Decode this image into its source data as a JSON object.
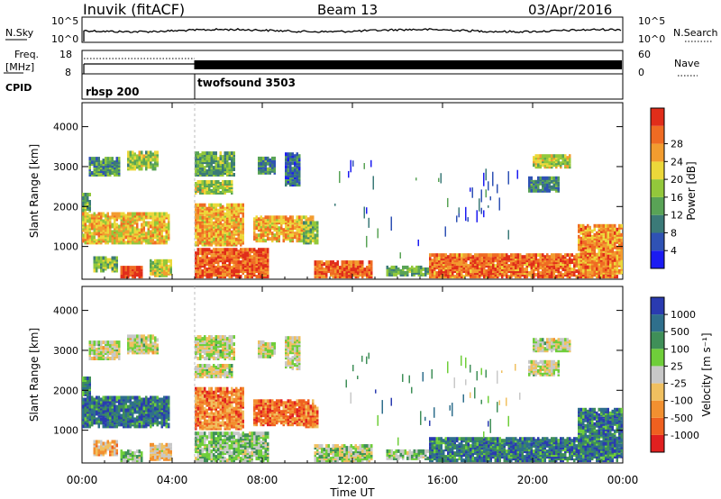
{
  "header": {
    "title": "Inuvik (fitACF)",
    "beam": "Beam 13",
    "date": "03/Apr/2016"
  },
  "top_panels": {
    "nsky_label": "N.Sky",
    "nsky_ticks": [
      "10^5",
      "10^0"
    ],
    "nsearch_label": "N.Search",
    "nsearch_ticks": [
      "10^5",
      "10^0"
    ],
    "freq_label": "Freq.",
    "freq_unit": "[MHz]",
    "freq_ticks": [
      "18",
      "8"
    ],
    "nave_label": "Nave",
    "nave_ticks": [
      "60",
      "0"
    ],
    "cpid_label": "CPID",
    "cpid_segments": [
      {
        "label": "rbsp 200",
        "start_hour": 0
      },
      {
        "label": "twofsound 3503",
        "start_hour": 5
      }
    ]
  },
  "chart_data": [
    {
      "type": "heatmap",
      "name": "power",
      "ylabel": "Slant Range [km]",
      "y_ticks": [
        "1000",
        "2000",
        "3000",
        "4000"
      ],
      "y_tick_values": [
        1000,
        2000,
        3000,
        4000
      ],
      "ylim": [
        180,
        4600
      ],
      "xlim_hours": [
        0,
        24
      ],
      "colorbar": {
        "label": "Power [dB]",
        "ticks": [
          "4",
          "8",
          "12",
          "16",
          "20",
          "24",
          "28"
        ],
        "colors": [
          "#1b1bf2",
          "#2f52b4",
          "#3b7a78",
          "#59a356",
          "#93c83b",
          "#ecd83a",
          "#f29c2f",
          "#ef6b23",
          "#e02d1a"
        ]
      },
      "regions": [
        {
          "t0": 0.0,
          "t1": 0.35,
          "r0": 1850,
          "r1": 2300,
          "level": 0.4
        },
        {
          "t0": 0.0,
          "t1": 3.9,
          "r0": 1050,
          "r1": 1800,
          "level": 0.65
        },
        {
          "t0": 0.3,
          "t1": 1.7,
          "r0": 2750,
          "r1": 3200,
          "level": 0.35
        },
        {
          "t0": 2.0,
          "t1": 3.4,
          "r0": 2900,
          "r1": 3350,
          "level": 0.5
        },
        {
          "t0": 0.5,
          "t1": 1.6,
          "r0": 350,
          "r1": 700,
          "level": 0.45
        },
        {
          "t0": 1.7,
          "t1": 2.7,
          "r0": 200,
          "r1": 450,
          "level": 0.95
        },
        {
          "t0": 3.0,
          "t1": 4.0,
          "r0": 230,
          "r1": 600,
          "level": 0.55
        },
        {
          "t0": 5.0,
          "t1": 7.1,
          "r0": 1000,
          "r1": 2000,
          "level": 0.7
        },
        {
          "t0": 5.0,
          "t1": 6.6,
          "r0": 2300,
          "r1": 2600,
          "level": 0.5
        },
        {
          "t0": 5.0,
          "t1": 6.7,
          "r0": 2750,
          "r1": 3300,
          "level": 0.4
        },
        {
          "t0": 5.0,
          "t1": 8.2,
          "r0": 200,
          "r1": 900,
          "level": 0.85
        },
        {
          "t0": 7.6,
          "t1": 10.2,
          "r0": 1100,
          "r1": 1700,
          "level": 0.7
        },
        {
          "t0": 9.8,
          "t1": 10.4,
          "r0": 1050,
          "r1": 1550,
          "level": 0.45
        },
        {
          "t0": 7.8,
          "t1": 8.5,
          "r0": 2800,
          "r1": 3200,
          "level": 0.3
        },
        {
          "t0": 9.0,
          "t1": 9.6,
          "r0": 2500,
          "r1": 3300,
          "level": 0.25
        },
        {
          "t0": 10.3,
          "t1": 12.8,
          "r0": 200,
          "r1": 600,
          "level": 0.85
        },
        {
          "t0": 13.5,
          "t1": 15.5,
          "r0": 250,
          "r1": 450,
          "level": 0.4
        },
        {
          "t0": 15.4,
          "t1": 23.8,
          "r0": 200,
          "r1": 750,
          "level": 0.82
        },
        {
          "t0": 22.0,
          "t1": 24.0,
          "r0": 300,
          "r1": 1500,
          "level": 0.75
        },
        {
          "t0": 20.0,
          "t1": 21.7,
          "r0": 2950,
          "r1": 3250,
          "level": 0.55
        },
        {
          "t0": 19.8,
          "t1": 21.2,
          "r0": 2350,
          "r1": 2700,
          "level": 0.3
        }
      ],
      "sparse_regions": [
        {
          "t0": 12.5,
          "t1": 19.0,
          "r0": 600,
          "r1": 2800,
          "level": 0.25
        },
        {
          "t0": 11.0,
          "t1": 13.0,
          "r0": 1500,
          "r1": 3100,
          "level": 0.2
        },
        {
          "t0": 16.5,
          "t1": 19.5,
          "r0": 1600,
          "r1": 2700,
          "level": 0.15
        }
      ]
    },
    {
      "type": "heatmap",
      "name": "velocity",
      "ylabel": "Slant Range [km]",
      "y_ticks": [
        "1000",
        "2000",
        "3000",
        "4000"
      ],
      "y_tick_values": [
        1000,
        2000,
        3000,
        4000
      ],
      "ylim": [
        180,
        4600
      ],
      "xlim_hours": [
        0,
        24
      ],
      "x_ticks": [
        "00:00",
        "04:00",
        "08:00",
        "12:00",
        "16:00",
        "20:00",
        "00:00"
      ],
      "xlabel": "Time UT",
      "colorbar": {
        "label": "Velocity [m s⁻¹]",
        "ticks": [
          "1000",
          "500",
          "100",
          "25",
          "-25",
          "-100",
          "-500",
          "-1000"
        ],
        "colors": [
          "#2a3bb0",
          "#2f6f8c",
          "#3f8f58",
          "#6fce3a",
          "#c8c8c8",
          "#f0c060",
          "#f29030",
          "#ef6020",
          "#e02020"
        ]
      },
      "regions": [
        {
          "t0": 0.0,
          "t1": 0.35,
          "r0": 1850,
          "r1": 2300,
          "level": 0.78
        },
        {
          "t0": 0.0,
          "t1": 3.9,
          "r0": 1050,
          "r1": 1800,
          "level": 0.82
        },
        {
          "t0": 0.3,
          "t1": 1.7,
          "r0": 2750,
          "r1": 3200,
          "level": 0.5
        },
        {
          "t0": 2.0,
          "t1": 3.4,
          "r0": 2900,
          "r1": 3350,
          "level": 0.5
        },
        {
          "t0": 0.5,
          "t1": 1.6,
          "r0": 350,
          "r1": 700,
          "level": 0.35
        },
        {
          "t0": 1.7,
          "t1": 2.7,
          "r0": 200,
          "r1": 450,
          "level": 0.6
        },
        {
          "t0": 3.0,
          "t1": 4.0,
          "r0": 230,
          "r1": 600,
          "level": 0.4
        },
        {
          "t0": 5.0,
          "t1": 7.1,
          "r0": 1000,
          "r1": 2000,
          "level": 0.25
        },
        {
          "t0": 5.0,
          "t1": 6.6,
          "r0": 2300,
          "r1": 2600,
          "level": 0.5
        },
        {
          "t0": 5.0,
          "t1": 6.7,
          "r0": 2750,
          "r1": 3300,
          "level": 0.5
        },
        {
          "t0": 5.0,
          "t1": 8.2,
          "r0": 200,
          "r1": 900,
          "level": 0.6
        },
        {
          "t0": 7.6,
          "t1": 10.2,
          "r0": 1100,
          "r1": 1700,
          "level": 0.2
        },
        {
          "t0": 9.8,
          "t1": 10.4,
          "r0": 1050,
          "r1": 1550,
          "level": 0.25
        },
        {
          "t0": 7.8,
          "t1": 8.5,
          "r0": 2800,
          "r1": 3200,
          "level": 0.5
        },
        {
          "t0": 9.0,
          "t1": 9.6,
          "r0": 2500,
          "r1": 3300,
          "level": 0.5
        },
        {
          "t0": 10.3,
          "t1": 12.8,
          "r0": 200,
          "r1": 600,
          "level": 0.55
        },
        {
          "t0": 13.5,
          "t1": 15.5,
          "r0": 250,
          "r1": 450,
          "level": 0.6
        },
        {
          "t0": 15.4,
          "t1": 23.8,
          "r0": 200,
          "r1": 750,
          "level": 0.8
        },
        {
          "t0": 22.0,
          "t1": 24.0,
          "r0": 300,
          "r1": 1500,
          "level": 0.8
        },
        {
          "t0": 20.0,
          "t1": 21.7,
          "r0": 2950,
          "r1": 3250,
          "level": 0.5
        },
        {
          "t0": 19.8,
          "t1": 21.2,
          "r0": 2350,
          "r1": 2700,
          "level": 0.5
        }
      ],
      "sparse_regions": [
        {
          "t0": 12.5,
          "t1": 19.0,
          "r0": 600,
          "r1": 2800,
          "level": 0.75
        },
        {
          "t0": 11.0,
          "t1": 13.0,
          "r0": 1500,
          "r1": 3100,
          "level": 0.6
        },
        {
          "t0": 16.5,
          "t1": 19.5,
          "r0": 1600,
          "r1": 2700,
          "level": 0.5
        }
      ]
    }
  ]
}
